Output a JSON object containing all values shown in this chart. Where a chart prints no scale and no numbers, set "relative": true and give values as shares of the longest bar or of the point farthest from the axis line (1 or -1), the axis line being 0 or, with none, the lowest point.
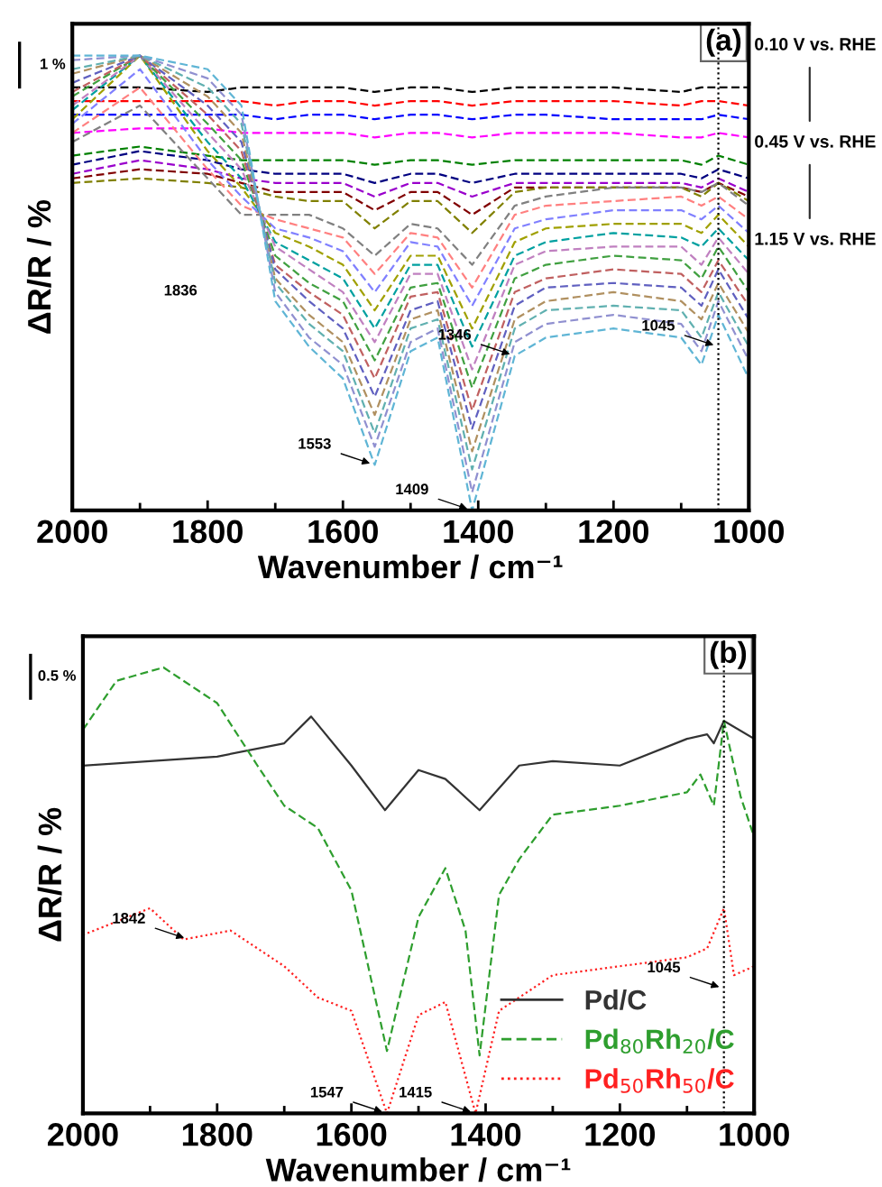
{
  "chart_data": [
    {
      "type": "line",
      "title": "(a)",
      "xlabel": "Wavenumber / cm⁻¹",
      "ylabel": "ΔR/R / %",
      "relative": true,
      "tick_labels": "x",
      "grid": false,
      "legend": false,
      "line_style": "dashed",
      "marker": "none",
      "xlim": [
        2000,
        1000
      ],
      "xticks": [
        2000,
        {
          "value": 1900,
          "label": null
        },
        1800,
        {
          "value": 1700,
          "label": null
        },
        1600,
        {
          "value": 1500,
          "label": null
        },
        1400,
        {
          "value": 1300,
          "label": null
        },
        1200,
        {
          "value": 1100,
          "label": null
        },
        1000
      ],
      "x": [
        2000,
        1900,
        1800,
        1750,
        1700,
        1650,
        1600,
        1553,
        1500,
        1460,
        1409,
        1346,
        1300,
        1200,
        1100,
        1070,
        1045,
        1000
      ],
      "series": [
        {
          "color": "#000000",
          "values": [
            0.93,
            0.93,
            0.92,
            0.93,
            0.93,
            0.93,
            0.93,
            0.92,
            0.93,
            0.93,
            0.92,
            0.93,
            0.93,
            0.93,
            0.92,
            0.93,
            0.93,
            0.93
          ]
        },
        {
          "color": "#ff0000",
          "values": [
            0.9,
            0.9,
            0.9,
            0.9,
            0.89,
            0.9,
            0.9,
            0.89,
            0.9,
            0.9,
            0.89,
            0.9,
            0.9,
            0.9,
            0.89,
            0.9,
            0.9,
            0.89
          ]
        },
        {
          "color": "#0000ff",
          "values": [
            0.87,
            0.87,
            0.87,
            0.87,
            0.86,
            0.87,
            0.87,
            0.86,
            0.87,
            0.87,
            0.86,
            0.87,
            0.87,
            0.86,
            0.86,
            0.86,
            0.87,
            0.86
          ]
        },
        {
          "color": "#ff00ff",
          "values": [
            0.83,
            0.84,
            0.84,
            0.83,
            0.83,
            0.83,
            0.83,
            0.82,
            0.83,
            0.83,
            0.82,
            0.83,
            0.83,
            0.83,
            0.82,
            0.82,
            0.83,
            0.82
          ]
        },
        {
          "color": "#008000",
          "values": [
            0.78,
            0.8,
            0.78,
            0.77,
            0.77,
            0.77,
            0.77,
            0.76,
            0.77,
            0.77,
            0.76,
            0.77,
            0.77,
            0.77,
            0.77,
            0.76,
            0.78,
            0.76
          ]
        },
        {
          "color": "#000080",
          "values": [
            0.76,
            0.79,
            0.77,
            0.75,
            0.74,
            0.74,
            0.74,
            0.72,
            0.74,
            0.74,
            0.72,
            0.74,
            0.74,
            0.74,
            0.74,
            0.73,
            0.75,
            0.73
          ]
        },
        {
          "color": "#9900cc",
          "values": [
            0.74,
            0.77,
            0.75,
            0.73,
            0.72,
            0.72,
            0.72,
            0.69,
            0.72,
            0.72,
            0.69,
            0.72,
            0.72,
            0.72,
            0.72,
            0.71,
            0.73,
            0.7
          ]
        },
        {
          "color": "#800000",
          "values": [
            0.73,
            0.75,
            0.74,
            0.72,
            0.7,
            0.7,
            0.7,
            0.66,
            0.7,
            0.7,
            0.65,
            0.71,
            0.71,
            0.71,
            0.71,
            0.7,
            0.72,
            0.69
          ]
        },
        {
          "color": "#808000",
          "values": [
            0.72,
            0.73,
            0.72,
            0.71,
            0.69,
            0.68,
            0.68,
            0.62,
            0.68,
            0.68,
            0.61,
            0.7,
            0.71,
            0.71,
            0.71,
            0.69,
            0.72,
            0.68
          ]
        },
        {
          "color": "#808080",
          "values": [
            0.81,
            0.89,
            0.73,
            0.65,
            0.65,
            0.65,
            0.62,
            0.56,
            0.63,
            0.62,
            0.54,
            0.67,
            0.69,
            0.71,
            0.71,
            0.7,
            0.72,
            0.67
          ]
        },
        {
          "color": "#ff8080",
          "values": [
            0.83,
            0.93,
            0.75,
            0.67,
            0.64,
            0.62,
            0.6,
            0.52,
            0.61,
            0.6,
            0.49,
            0.65,
            0.67,
            0.68,
            0.69,
            0.67,
            0.69,
            0.64
          ]
        },
        {
          "color": "#8080ff",
          "values": [
            0.85,
            0.97,
            0.77,
            0.69,
            0.62,
            0.6,
            0.57,
            0.48,
            0.59,
            0.58,
            0.45,
            0.62,
            0.64,
            0.66,
            0.66,
            0.64,
            0.67,
            0.61
          ]
        },
        {
          "color": "#a0a000",
          "values": [
            0.86,
            1.0,
            0.79,
            0.71,
            0.61,
            0.58,
            0.54,
            0.44,
            0.56,
            0.56,
            0.4,
            0.59,
            0.62,
            0.63,
            0.63,
            0.61,
            0.65,
            0.58
          ]
        },
        {
          "color": "#00a0a0",
          "values": [
            0.88,
            1.0,
            0.81,
            0.73,
            0.59,
            0.55,
            0.51,
            0.4,
            0.54,
            0.54,
            0.36,
            0.56,
            0.59,
            0.61,
            0.6,
            0.58,
            0.62,
            0.55
          ]
        },
        {
          "color": "#c080c0",
          "values": [
            0.89,
            1.0,
            0.83,
            0.75,
            0.58,
            0.53,
            0.48,
            0.37,
            0.52,
            0.52,
            0.31,
            0.54,
            0.57,
            0.58,
            0.58,
            0.54,
            0.6,
            0.52
          ]
        },
        {
          "color": "#40a040",
          "values": [
            0.91,
            1.0,
            0.85,
            0.77,
            0.56,
            0.5,
            0.46,
            0.33,
            0.49,
            0.5,
            0.27,
            0.51,
            0.54,
            0.56,
            0.55,
            0.51,
            0.58,
            0.48
          ]
        },
        {
          "color": "#c06060",
          "values": [
            0.92,
            1.0,
            0.87,
            0.79,
            0.54,
            0.48,
            0.43,
            0.29,
            0.47,
            0.48,
            0.22,
            0.48,
            0.51,
            0.53,
            0.52,
            0.48,
            0.55,
            0.45
          ]
        },
        {
          "color": "#6060c0",
          "values": [
            0.94,
            1.0,
            0.89,
            0.81,
            0.53,
            0.46,
            0.4,
            0.25,
            0.44,
            0.46,
            0.18,
            0.45,
            0.49,
            0.5,
            0.49,
            0.45,
            0.53,
            0.42
          ]
        },
        {
          "color": "#b09060",
          "values": [
            0.96,
            1.0,
            0.91,
            0.83,
            0.51,
            0.43,
            0.37,
            0.21,
            0.42,
            0.44,
            0.13,
            0.42,
            0.46,
            0.48,
            0.46,
            0.42,
            0.5,
            0.39
          ]
        },
        {
          "color": "#60b0b0",
          "values": [
            0.97,
            1.0,
            0.93,
            0.85,
            0.5,
            0.41,
            0.35,
            0.17,
            0.4,
            0.42,
            0.09,
            0.4,
            0.44,
            0.45,
            0.44,
            0.38,
            0.48,
            0.36
          ]
        },
        {
          "color": "#9090d0",
          "values": [
            0.99,
            1.0,
            0.95,
            0.87,
            0.48,
            0.38,
            0.32,
            0.14,
            0.37,
            0.4,
            0.04,
            0.37,
            0.41,
            0.43,
            0.41,
            0.35,
            0.46,
            0.33
          ]
        },
        {
          "color": "#5fb5d5",
          "values": [
            1.0,
            1.0,
            0.97,
            0.89,
            0.46,
            0.36,
            0.29,
            0.1,
            0.35,
            0.38,
            0.0,
            0.34,
            0.38,
            0.4,
            0.38,
            0.32,
            0.43,
            0.29
          ]
        }
      ],
      "ref_lines": [
        {
          "axis": "x",
          "value": 1045,
          "color": "#000000",
          "line_style": "dotted"
        }
      ],
      "annotations": [
        "1 %",
        "0.10 V vs. RHE",
        "0.45 V vs. RHE",
        "1.15 V vs. RHE",
        "1836",
        {
          "text": "1553",
          "x": 1553,
          "y": 0.1
        },
        {
          "text": "1409",
          "x": 1409,
          "y": 0.0
        },
        {
          "text": "1346",
          "x": 1346,
          "y": 0.34
        },
        {
          "text": "1045",
          "x": 1045,
          "y": 0.36
        }
      ]
    },
    {
      "type": "line",
      "title": "(b)",
      "xlabel": "Wavenumber / cm⁻¹",
      "ylabel": "ΔR/R / %",
      "relative": true,
      "tick_labels": "x",
      "grid": false,
      "legend": "bottom right",
      "marker": "none",
      "xlim": [
        2000,
        1000
      ],
      "xticks": [
        2000,
        {
          "value": 1900,
          "label": null
        },
        1800,
        {
          "value": 1700,
          "label": null
        },
        1600,
        {
          "value": 1500,
          "label": null
        },
        1400,
        {
          "value": 1300,
          "label": null
        },
        1200,
        {
          "value": 1100,
          "label": null
        },
        1000
      ],
      "series": [
        {
          "name": "Pd/C",
          "color": "#333333",
          "line_style": "solid",
          "x": [
            2000,
            1900,
            1800,
            1700,
            1660,
            1600,
            1550,
            1500,
            1460,
            1409,
            1350,
            1300,
            1200,
            1100,
            1070,
            1060,
            1045,
            1000
          ],
          "values": [
            0.78,
            0.79,
            0.8,
            0.83,
            0.89,
            0.78,
            0.68,
            0.77,
            0.75,
            0.68,
            0.78,
            0.79,
            0.78,
            0.84,
            0.85,
            0.83,
            0.88,
            0.84
          ]
        },
        {
          "name": "Pd$_{80}$Rh$_{20}$/C",
          "color": "#2e9e2e",
          "line_style": "dashed",
          "x": [
            2000,
            1950,
            1880,
            1800,
            1740,
            1700,
            1650,
            1600,
            1547,
            1500,
            1460,
            1430,
            1409,
            1380,
            1350,
            1300,
            1200,
            1100,
            1080,
            1060,
            1045,
            1020,
            1000
          ],
          "values": [
            0.86,
            0.97,
            1.0,
            0.92,
            0.78,
            0.69,
            0.64,
            0.5,
            0.14,
            0.44,
            0.55,
            0.41,
            0.13,
            0.49,
            0.57,
            0.67,
            0.69,
            0.72,
            0.76,
            0.69,
            0.88,
            0.71,
            0.62
          ]
        },
        {
          "name": "Pd$_{50}$Rh$_{50}$/C",
          "color": "#ff2020",
          "line_style": "dotted",
          "x": [
            2000,
            1900,
            1850,
            1780,
            1700,
            1650,
            1600,
            1547,
            1500,
            1460,
            1415,
            1380,
            1300,
            1200,
            1100,
            1070,
            1045,
            1030,
            1000
          ],
          "values": [
            0.4,
            0.46,
            0.39,
            0.41,
            0.33,
            0.26,
            0.23,
            0.0,
            0.22,
            0.25,
            0.0,
            0.23,
            0.31,
            0.33,
            0.35,
            0.37,
            0.46,
            0.31,
            0.33
          ]
        }
      ],
      "ref_lines": [
        {
          "axis": "x",
          "value": 1045,
          "color": "#000000",
          "line_style": "dotted"
        }
      ],
      "annotations": [
        "0.5 %",
        {
          "text": "1842",
          "x": 1842,
          "y": 0.39
        },
        {
          "text": "1547",
          "x": 1547,
          "y": 0.0
        },
        {
          "text": "1415",
          "x": 1415,
          "y": 0.0
        },
        {
          "text": "1045",
          "x": 1045,
          "y": 0.28
        }
      ]
    }
  ]
}
